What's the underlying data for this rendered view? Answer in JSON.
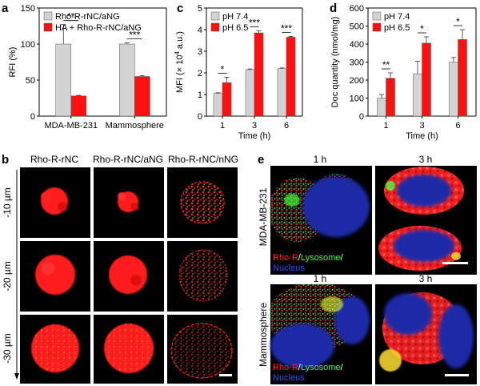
{
  "colors": {
    "gray_bar": "#d3d3d3",
    "red_bar": "#ff1010",
    "micro_bg": "#000000"
  },
  "chart_data": [
    {
      "panel": "a",
      "type": "bar",
      "categories": [
        "MDA-MB-231",
        "Mammosphere"
      ],
      "series": [
        {
          "name": "Rho-R-rNC/aNG",
          "color": "#d3d3d3",
          "values": [
            100,
            100
          ],
          "errors": [
            27,
            1.5
          ]
        },
        {
          "name": "HA + Rho-R-rNC/aNG",
          "color": "#ff1010",
          "values": [
            28,
            55
          ],
          "errors": [
            0.8,
            1.2
          ]
        }
      ],
      "ylabel": "RFI (%)",
      "xlabel": "",
      "ylim": [
        0,
        150
      ],
      "yticks": [
        "0",
        "50",
        "100",
        "150"
      ],
      "significance": [
        "**",
        "***"
      ],
      "legend": "top-left",
      "grid": false
    },
    {
      "panel": "c",
      "type": "bar",
      "categories": [
        "1",
        "3",
        "6"
      ],
      "series": [
        {
          "name": "pH 7.4",
          "color": "#d3d3d3",
          "values": [
            1.05,
            2.15,
            2.2
          ],
          "errors": [
            0.03,
            0.03,
            0.03
          ]
        },
        {
          "name": "pH 6.5",
          "color": "#ff1010",
          "values": [
            1.55,
            3.85,
            3.65
          ],
          "errors": [
            0.25,
            0.1,
            0.04
          ]
        }
      ],
      "ylabel_parts": [
        "MFI (",
        "× 10",
        "4",
        " a.u.)"
      ],
      "xlabel": "Time (h)",
      "ylim": [
        0,
        5
      ],
      "yticks": [
        "0",
        "1",
        "2",
        "3",
        "4",
        "5"
      ],
      "significance": [
        "*",
        "***",
        "***"
      ],
      "legend": "top-left",
      "grid": false
    },
    {
      "panel": "d",
      "type": "bar",
      "categories": [
        "1",
        "3",
        "6"
      ],
      "series": [
        {
          "name": "pH 7.4",
          "color": "#d3d3d3",
          "values": [
            100,
            235,
            300
          ],
          "errors": [
            20,
            70,
            25
          ]
        },
        {
          "name": "pH 6.5",
          "color": "#ff1010",
          "values": [
            210,
            405,
            425
          ],
          "errors": [
            30,
            35,
            55
          ]
        }
      ],
      "ylabel": "Doc quantity (nmol/mg)",
      "xlabel": "Time (h)",
      "ylim": [
        0,
        600
      ],
      "yticks": [
        "0",
        "100",
        "200",
        "300",
        "400",
        "500",
        "600"
      ],
      "significance": [
        "**",
        "*",
        "*"
      ],
      "legend": "top-left",
      "grid": false
    }
  ],
  "panel_b": {
    "letter": "b",
    "columns": [
      "Rho-R-rNC",
      "Rho-R-rNC/aNG",
      "Rho-R-rNC/nNG"
    ],
    "rows": [
      "-10 µm",
      "-20 µm",
      "-30 µm"
    ]
  },
  "panel_e": {
    "letter": "e",
    "time_labels": [
      "1 h",
      "3 h"
    ],
    "groups": [
      "MDA-MB-231",
      "Mammosphere"
    ],
    "overlay": {
      "rho": "Rho-R",
      "lyso": "Lysosome",
      "nuc": "Nucleus",
      "slash": "/"
    }
  }
}
